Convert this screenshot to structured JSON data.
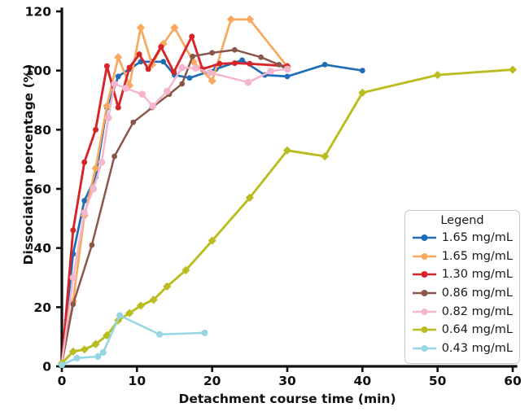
{
  "chart_data": {
    "type": "line",
    "title": "",
    "xlabel": "Detachment course time (min)",
    "ylabel": "Dissociation percentage (%)",
    "xlim": [
      0,
      60
    ],
    "ylim": [
      0,
      120
    ],
    "xticks": [
      0,
      10,
      20,
      30,
      40,
      50,
      60
    ],
    "yticks": [
      0,
      20,
      40,
      60,
      80,
      100,
      120
    ],
    "grid": false,
    "legend": {
      "title": "Legend",
      "position": "lower right"
    },
    "axis_color": "#111111",
    "series": [
      {
        "name": "1.65 mg/mL",
        "color": "#1e6db6",
        "marker": "o",
        "marker_size": 3.4,
        "line_width": 2.7,
        "points": [
          [
            0,
            1
          ],
          [
            1.5,
            38
          ],
          [
            3,
            56
          ],
          [
            4.5,
            64
          ],
          [
            6,
            87.5
          ],
          [
            7.5,
            98
          ],
          [
            9,
            100.5
          ],
          [
            10.5,
            103
          ],
          [
            12,
            103
          ],
          [
            13.5,
            103
          ],
          [
            15,
            98.5
          ],
          [
            17,
            97.5
          ],
          [
            20.5,
            100.5
          ],
          [
            24,
            103.5
          ],
          [
            27,
            98.5
          ],
          [
            30,
            98
          ],
          [
            35,
            102
          ],
          [
            40,
            100
          ]
        ]
      },
      {
        "name": "1.65 mg/mL",
        "color": "#f8a95f",
        "marker": "D",
        "marker_size": 3.6,
        "line_width": 2.7,
        "points": [
          [
            0,
            1
          ],
          [
            1.5,
            22
          ],
          [
            3,
            51
          ],
          [
            4.5,
            67
          ],
          [
            6,
            88
          ],
          [
            7.5,
            104.5
          ],
          [
            9,
            95
          ],
          [
            10.5,
            114.5
          ],
          [
            12,
            102
          ],
          [
            13.5,
            109
          ],
          [
            15,
            114.5
          ],
          [
            17.5,
            103
          ],
          [
            20,
            96.5
          ],
          [
            22.5,
            117.3
          ],
          [
            25,
            117.3
          ],
          [
            30,
            101.3
          ]
        ]
      },
      {
        "name": "1.30 mg/mL",
        "color": "#d62428",
        "marker": "o",
        "marker_size": 3.5,
        "line_width": 2.9,
        "points": [
          [
            0,
            1
          ],
          [
            1.5,
            46
          ],
          [
            3,
            69
          ],
          [
            4.5,
            80
          ],
          [
            6,
            101.5
          ],
          [
            7.5,
            87.5
          ],
          [
            9,
            101
          ],
          [
            10.3,
            105.5
          ],
          [
            11.5,
            100.5
          ],
          [
            13.2,
            108
          ],
          [
            14.9,
            99.5
          ],
          [
            17.3,
            111.5
          ],
          [
            18.7,
            100.5
          ],
          [
            21,
            102.3
          ],
          [
            23,
            102.5
          ],
          [
            25,
            102.3
          ],
          [
            30,
            101.5
          ]
        ]
      },
      {
        "name": "0.86 mg/mL",
        "color": "#8a564a",
        "marker": "o",
        "marker_size": 3.4,
        "line_width": 2.5,
        "points": [
          [
            0,
            1
          ],
          [
            1.5,
            21
          ],
          [
            4,
            41
          ],
          [
            7,
            71
          ],
          [
            9.5,
            82.5
          ],
          [
            12,
            87.5
          ],
          [
            14.3,
            92
          ],
          [
            16,
            95.5
          ],
          [
            17.4,
            104.8
          ],
          [
            20,
            106
          ],
          [
            23,
            107
          ],
          [
            26.5,
            104.5
          ],
          [
            28.9,
            102
          ],
          [
            30,
            100.3
          ]
        ]
      },
      {
        "name": "0.82 mg/mL",
        "color": "#f4b6ce",
        "marker": "o",
        "marker_size": 4.3,
        "line_width": 2.5,
        "points": [
          [
            0,
            1
          ],
          [
            1.5,
            30
          ],
          [
            3,
            52
          ],
          [
            4.2,
            60
          ],
          [
            5.3,
            69
          ],
          [
            6.2,
            84
          ],
          [
            7,
            95.5
          ],
          [
            8.5,
            94
          ],
          [
            10.7,
            92
          ],
          [
            12.1,
            88
          ],
          [
            14,
            93
          ],
          [
            16,
            101
          ],
          [
            17.8,
            100.8
          ],
          [
            19.7,
            99.3
          ],
          [
            24.8,
            96
          ],
          [
            27.8,
            99.8
          ],
          [
            30,
            100.5
          ]
        ]
      },
      {
        "name": "0.64 mg/mL",
        "color": "#b9bd1f",
        "marker": "D",
        "marker_size": 3.6,
        "line_width": 2.9,
        "points": [
          [
            0,
            1
          ],
          [
            1.5,
            5
          ],
          [
            3,
            5.7
          ],
          [
            4.5,
            7.5
          ],
          [
            6,
            10.5
          ],
          [
            7.5,
            15.5
          ],
          [
            9,
            18
          ],
          [
            10.5,
            20.5
          ],
          [
            12.2,
            22.5
          ],
          [
            14,
            27
          ],
          [
            16.5,
            32.5
          ],
          [
            20,
            42.5
          ],
          [
            25,
            57
          ],
          [
            30,
            73
          ],
          [
            35,
            71
          ],
          [
            40,
            92.5
          ],
          [
            50,
            98.5
          ],
          [
            60,
            100.3
          ]
        ]
      },
      {
        "name": "0.43 mg/mL",
        "color": "#96d5e2",
        "marker": "o",
        "marker_size": 4.0,
        "line_width": 2.5,
        "points": [
          [
            0,
            0.5
          ],
          [
            2,
            2.8
          ],
          [
            4.8,
            3.3
          ],
          [
            5.5,
            4.7
          ],
          [
            7.7,
            17.2
          ],
          [
            13,
            10.8
          ],
          [
            19,
            11.3
          ]
        ]
      }
    ]
  }
}
